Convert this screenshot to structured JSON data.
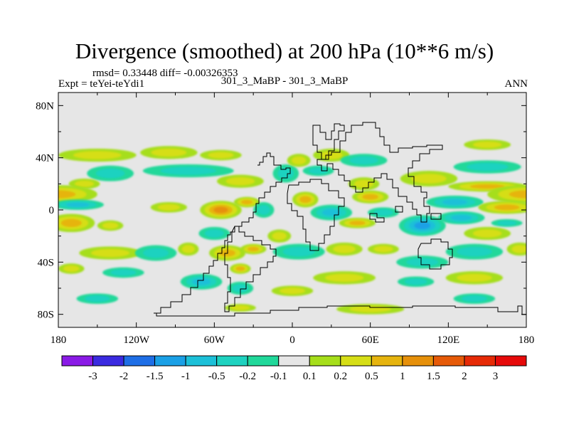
{
  "header": {
    "title": "Divergence (smoothed) at 200 hPa (10**6 m/s)",
    "stats": "rmsd= 0.33448 diff= -0.00326353",
    "experiment": "Expt = teYei-teYdi1",
    "case": "301_3_MaBP - 301_3_MaBP",
    "season": "ANN"
  },
  "chart_data": {
    "type": "heatmap",
    "title": "Divergence (smoothed) at 200 hPa (10**6 m/s)",
    "xlabel": "",
    "ylabel": "",
    "xlim": [
      -180,
      180
    ],
    "ylim": [
      -90,
      90
    ],
    "x_ticks": [
      {
        "value": -180,
        "label": "180"
      },
      {
        "value": -120,
        "label": "120W"
      },
      {
        "value": -60,
        "label": "60W"
      },
      {
        "value": 0,
        "label": "0"
      },
      {
        "value": 60,
        "label": "60E"
      },
      {
        "value": 120,
        "label": "120E"
      },
      {
        "value": 180,
        "label": "180"
      }
    ],
    "y_ticks": [
      {
        "value": 80,
        "label": "80N"
      },
      {
        "value": 40,
        "label": "40N"
      },
      {
        "value": 0,
        "label": "0"
      },
      {
        "value": -40,
        "label": "40S"
      },
      {
        "value": -80,
        "label": "80S"
      }
    ],
    "colorbar": {
      "levels": [
        "-3",
        "-2",
        "-1.5",
        "-1",
        "-0.5",
        "-0.2",
        "-0.1",
        "0.1",
        "0.2",
        "0.5",
        "1",
        "1.5",
        "2",
        "3"
      ],
      "colors": [
        "#8a1ae6",
        "#3a2ae0",
        "#1e6ee6",
        "#1aa0e6",
        "#1cc0d8",
        "#1ed2c0",
        "#20d89a",
        "#e6e6e6",
        "#a6de1a",
        "#d6de16",
        "#e6b40e",
        "#e6900a",
        "#e65a08",
        "#e62a06",
        "#e60a0a"
      ]
    },
    "background_color": "#e6e6e6",
    "blobs": [
      {
        "lon": -150,
        "lat": 42,
        "w": 30,
        "h": 5,
        "v": 0.35
      },
      {
        "lon": -95,
        "lat": 44,
        "w": 22,
        "h": 5,
        "v": 0.3
      },
      {
        "lon": -55,
        "lat": 42,
        "w": 16,
        "h": 4,
        "v": 0.25
      },
      {
        "lon": -140,
        "lat": 28,
        "w": 18,
        "h": 6,
        "v": -0.45
      },
      {
        "lon": -160,
        "lat": 20,
        "w": 12,
        "h": 4,
        "v": 0.3
      },
      {
        "lon": -80,
        "lat": 30,
        "w": 35,
        "h": 5,
        "v": -0.4
      },
      {
        "lon": -40,
        "lat": 22,
        "w": 18,
        "h": 5,
        "v": 0.35
      },
      {
        "lon": -5,
        "lat": 28,
        "w": 10,
        "h": 7,
        "v": -0.35
      },
      {
        "lon": 5,
        "lat": 38,
        "w": 9,
        "h": 5,
        "v": 0.3
      },
      {
        "lon": 20,
        "lat": 30,
        "w": 12,
        "h": 4,
        "v": -0.3
      },
      {
        "lon": 30,
        "lat": 42,
        "w": 14,
        "h": 5,
        "v": 0.35
      },
      {
        "lon": 55,
        "lat": 38,
        "w": 18,
        "h": 5,
        "v": -0.35
      },
      {
        "lon": 55,
        "lat": 20,
        "w": 12,
        "h": 5,
        "v": 0.4
      },
      {
        "lon": 105,
        "lat": 24,
        "w": 22,
        "h": 6,
        "v": 0.3
      },
      {
        "lon": 150,
        "lat": 33,
        "w": 26,
        "h": 5,
        "v": -0.4
      },
      {
        "lon": 150,
        "lat": 50,
        "w": 18,
        "h": 4,
        "v": 0.3
      },
      {
        "lon": 150,
        "lat": 18,
        "w": 30,
        "h": 4,
        "v": 0.6
      },
      {
        "lon": -180,
        "lat": 12,
        "w": 30,
        "h": 7,
        "v": 0.9
      },
      {
        "lon": 180,
        "lat": 12,
        "w": 30,
        "h": 7,
        "v": 0.9
      },
      {
        "lon": -165,
        "lat": 4,
        "w": 20,
        "h": 4,
        "v": -0.5
      },
      {
        "lon": -170,
        "lat": -10,
        "w": 18,
        "h": 7,
        "v": 0.6
      },
      {
        "lon": -140,
        "lat": -12,
        "w": 10,
        "h": 4,
        "v": 0.4
      },
      {
        "lon": -95,
        "lat": 2,
        "w": 14,
        "h": 4,
        "v": 0.3
      },
      {
        "lon": -55,
        "lat": 0,
        "w": 16,
        "h": 7,
        "v": 1.1
      },
      {
        "lon": -35,
        "lat": 6,
        "w": 10,
        "h": 4,
        "v": 0.6
      },
      {
        "lon": -22,
        "lat": 0,
        "w": 8,
        "h": 6,
        "v": -0.45
      },
      {
        "lon": -10,
        "lat": -20,
        "w": 9,
        "h": 5,
        "v": 0.25
      },
      {
        "lon": -60,
        "lat": -18,
        "w": 12,
        "h": 5,
        "v": -0.3
      },
      {
        "lon": 10,
        "lat": 8,
        "w": 10,
        "h": 6,
        "v": 0.5
      },
      {
        "lon": 30,
        "lat": -2,
        "w": 16,
        "h": 6,
        "v": -0.5
      },
      {
        "lon": 50,
        "lat": -10,
        "w": 14,
        "h": 4,
        "v": 0.5
      },
      {
        "lon": 60,
        "lat": 10,
        "w": 14,
        "h": 5,
        "v": 0.5
      },
      {
        "lon": 70,
        "lat": -2,
        "w": 12,
        "h": 4,
        "v": -0.4
      },
      {
        "lon": 100,
        "lat": -12,
        "w": 18,
        "h": 8,
        "v": -1.2
      },
      {
        "lon": 125,
        "lat": 6,
        "w": 22,
        "h": 5,
        "v": -0.6
      },
      {
        "lon": 130,
        "lat": -6,
        "w": 18,
        "h": 5,
        "v": -0.5
      },
      {
        "lon": 150,
        "lat": -18,
        "w": 18,
        "h": 5,
        "v": 0.3
      },
      {
        "lon": 165,
        "lat": 2,
        "w": 22,
        "h": 5,
        "v": 0.5
      },
      {
        "lon": 165,
        "lat": -10,
        "w": 12,
        "h": 3,
        "v": -0.4
      },
      {
        "lon": -140,
        "lat": -33,
        "w": 24,
        "h": 5,
        "v": 0.4
      },
      {
        "lon": -105,
        "lat": -33,
        "w": 16,
        "h": 6,
        "v": -0.4
      },
      {
        "lon": -80,
        "lat": -30,
        "w": 8,
        "h": 5,
        "v": 0.3
      },
      {
        "lon": -50,
        "lat": -33,
        "w": 14,
        "h": 6,
        "v": 0.9
      },
      {
        "lon": -30,
        "lat": -30,
        "w": 10,
        "h": 4,
        "v": 0.6
      },
      {
        "lon": 5,
        "lat": -32,
        "w": 20,
        "h": 6,
        "v": -0.4
      },
      {
        "lon": 40,
        "lat": -30,
        "w": 14,
        "h": 5,
        "v": 0.4
      },
      {
        "lon": 70,
        "lat": -30,
        "w": 12,
        "h": 4,
        "v": 0.3
      },
      {
        "lon": 100,
        "lat": -40,
        "w": 20,
        "h": 5,
        "v": -0.4
      },
      {
        "lon": 140,
        "lat": -32,
        "w": 22,
        "h": 6,
        "v": -0.45
      },
      {
        "lon": 175,
        "lat": -30,
        "w": 10,
        "h": 5,
        "v": 0.4
      },
      {
        "lon": -130,
        "lat": -48,
        "w": 16,
        "h": 4,
        "v": -0.3
      },
      {
        "lon": -70,
        "lat": -55,
        "w": 16,
        "h": 6,
        "v": -0.55
      },
      {
        "lon": -40,
        "lat": -60,
        "w": 10,
        "h": 5,
        "v": -0.45
      },
      {
        "lon": -40,
        "lat": -45,
        "w": 8,
        "h": 4,
        "v": 0.5
      },
      {
        "lon": 40,
        "lat": -52,
        "w": 24,
        "h": 5,
        "v": 0.45
      },
      {
        "lon": 95,
        "lat": -55,
        "w": 14,
        "h": 4,
        "v": -0.3
      },
      {
        "lon": 140,
        "lat": -52,
        "w": 22,
        "h": 5,
        "v": 0.4
      },
      {
        "lon": 0,
        "lat": -62,
        "w": 16,
        "h": 4,
        "v": 0.25
      },
      {
        "lon": -150,
        "lat": -68,
        "w": 16,
        "h": 4,
        "v": -0.25
      },
      {
        "lon": -40,
        "lat": -75,
        "w": 12,
        "h": 3,
        "v": 0.3
      },
      {
        "lon": 60,
        "lat": -76,
        "w": 26,
        "h": 4,
        "v": 0.3
      },
      {
        "lon": 140,
        "lat": -68,
        "w": 16,
        "h": 4,
        "v": -0.3
      },
      {
        "lon": -170,
        "lat": -45,
        "w": 10,
        "h": 4,
        "v": 0.3
      }
    ]
  }
}
